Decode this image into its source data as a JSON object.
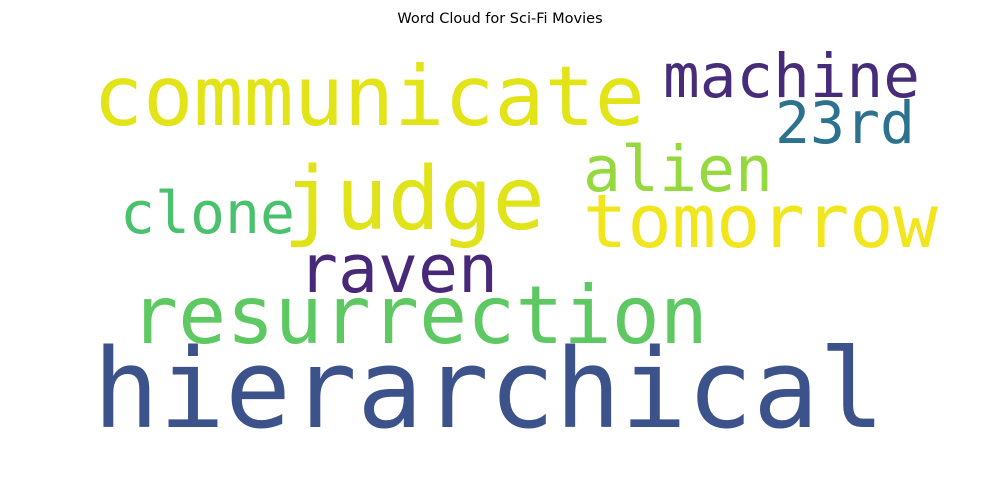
{
  "title": "Word Cloud for Sci-Fi Movies",
  "words": [
    {
      "text": "hierarchical",
      "color": "#3b528b"
    },
    {
      "text": "communicate",
      "color": "#e2e418"
    },
    {
      "text": "machine",
      "color": "#472c7a"
    },
    {
      "text": "23rd",
      "color": "#2c728e"
    },
    {
      "text": "alien",
      "color": "#95d840"
    },
    {
      "text": "judge",
      "color": "#dfe318"
    },
    {
      "text": "clone",
      "color": "#4ac16d"
    },
    {
      "text": "tomorrow",
      "color": "#f1e51d"
    },
    {
      "text": "raven",
      "color": "#482878"
    },
    {
      "text": "resurrection",
      "color": "#5ec962"
    }
  ]
}
